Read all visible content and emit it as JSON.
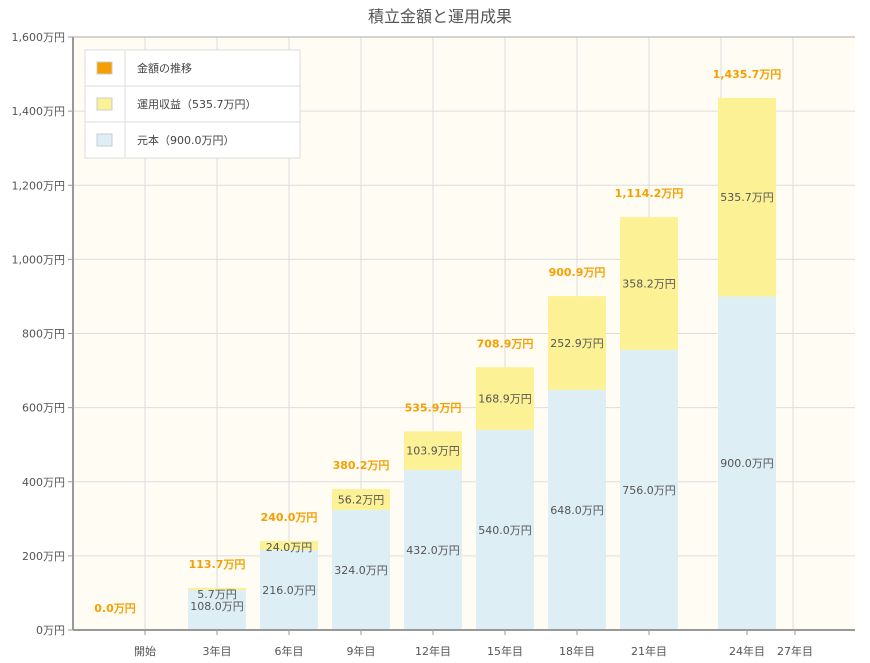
{
  "chart_data": {
    "type": "bar",
    "stacked": true,
    "title": "積立金額と運用成果",
    "categories": [
      "開始",
      "3年目",
      "6年目",
      "9年目",
      "12年目",
      "15年目",
      "18年目",
      "21年目",
      "24年目",
      "27年目"
    ],
    "series": [
      {
        "name": "元本（900.0万円）",
        "color": "#deeef5",
        "values": [
          0,
          108.0,
          216.0,
          324.0,
          432.0,
          540.0,
          648.0,
          756.0,
          900.0,
          null
        ],
        "labels": [
          "",
          "108.0万円",
          "216.0万円",
          "324.0万円",
          "432.0万円",
          "540.0万円",
          "648.0万円",
          "756.0万円",
          "900.0万円",
          ""
        ]
      },
      {
        "name": "運用収益（535.7万円）",
        "color": "#fdf196",
        "values": [
          0,
          5.7,
          24.0,
          56.2,
          103.9,
          168.9,
          252.9,
          358.2,
          535.7,
          null
        ],
        "labels": [
          "",
          "5.7万円",
          "24.0万円",
          "56.2万円",
          "103.9万円",
          "168.9万円",
          "252.9万円",
          "358.2万円",
          "535.7万円",
          ""
        ]
      }
    ],
    "totals": {
      "name": "金額の推移",
      "color": "#f5a000",
      "labels": [
        "0.0万円",
        "113.7万円",
        "240.0万円",
        "380.2万円",
        "535.9万円",
        "708.9万円",
        "900.9万円",
        "1,114.2万円",
        "1,435.7万円",
        ""
      ],
      "values": [
        0,
        113.7,
        240.0,
        380.2,
        535.9,
        708.9,
        900.9,
        1114.2,
        1435.7,
        null
      ]
    },
    "ylim": [
      0,
      1600
    ],
    "yticks": [
      0,
      200,
      400,
      600,
      800,
      1000,
      1200,
      1400,
      1600
    ],
    "ytick_labels": [
      "0万円",
      "200万円",
      "400万円",
      "600万円",
      "800万円",
      "1,000万円",
      "1,200万円",
      "1,400万円",
      "1,600万円"
    ],
    "grid": true,
    "legend": "top-left"
  }
}
